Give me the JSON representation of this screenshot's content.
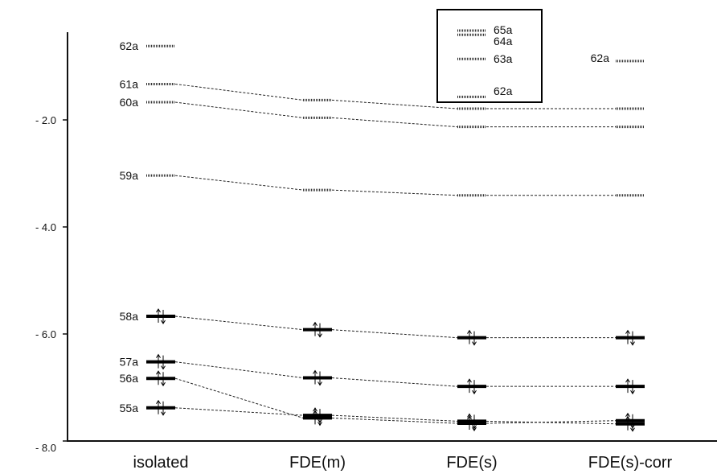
{
  "chart_data": {
    "type": "line",
    "title": "",
    "xlabel": "",
    "ylabel": "",
    "categories": [
      "isolated",
      "FDE(m)",
      "FDE(s)",
      "FDE(s)-corr"
    ],
    "ylim": [
      -8.0,
      -0.4
    ],
    "yticks": [
      -2.0,
      -4.0,
      -6.0,
      -8.0
    ],
    "ytick_labels": [
      "- 2.0",
      "- 4.0",
      "- 6.0",
      "- 8.0"
    ],
    "grid": false,
    "series": [
      {
        "name": "55a",
        "occupied": true,
        "values": [
          -7.38,
          -7.52,
          -7.63,
          -7.68
        ]
      },
      {
        "name": "56a",
        "occupied": true,
        "values": [
          -6.83,
          -7.57,
          -7.67,
          -7.62
        ]
      },
      {
        "name": "57a",
        "occupied": true,
        "values": [
          -6.52,
          -6.82,
          -6.98,
          -6.98
        ]
      },
      {
        "name": "58a",
        "occupied": true,
        "values": [
          -5.67,
          -5.92,
          -6.07,
          -6.07
        ]
      },
      {
        "name": "59a",
        "occupied": false,
        "values": [
          -3.04,
          -3.31,
          -3.41,
          -3.41
        ]
      },
      {
        "name": "60a",
        "occupied": false,
        "values": [
          -1.67,
          -1.96,
          -2.13,
          -2.13
        ]
      },
      {
        "name": "61a",
        "occupied": false,
        "values": [
          -1.33,
          -1.63,
          -1.79,
          -1.79
        ]
      },
      {
        "name": "62a",
        "occupied": false,
        "values": [
          -0.62,
          null,
          null,
          -0.9
        ]
      }
    ],
    "inset": {
      "labels": [
        "65a",
        "64a",
        "63a",
        "62a"
      ],
      "values": [
        -0.33,
        -0.41,
        -0.86,
        -1.57
      ]
    }
  }
}
